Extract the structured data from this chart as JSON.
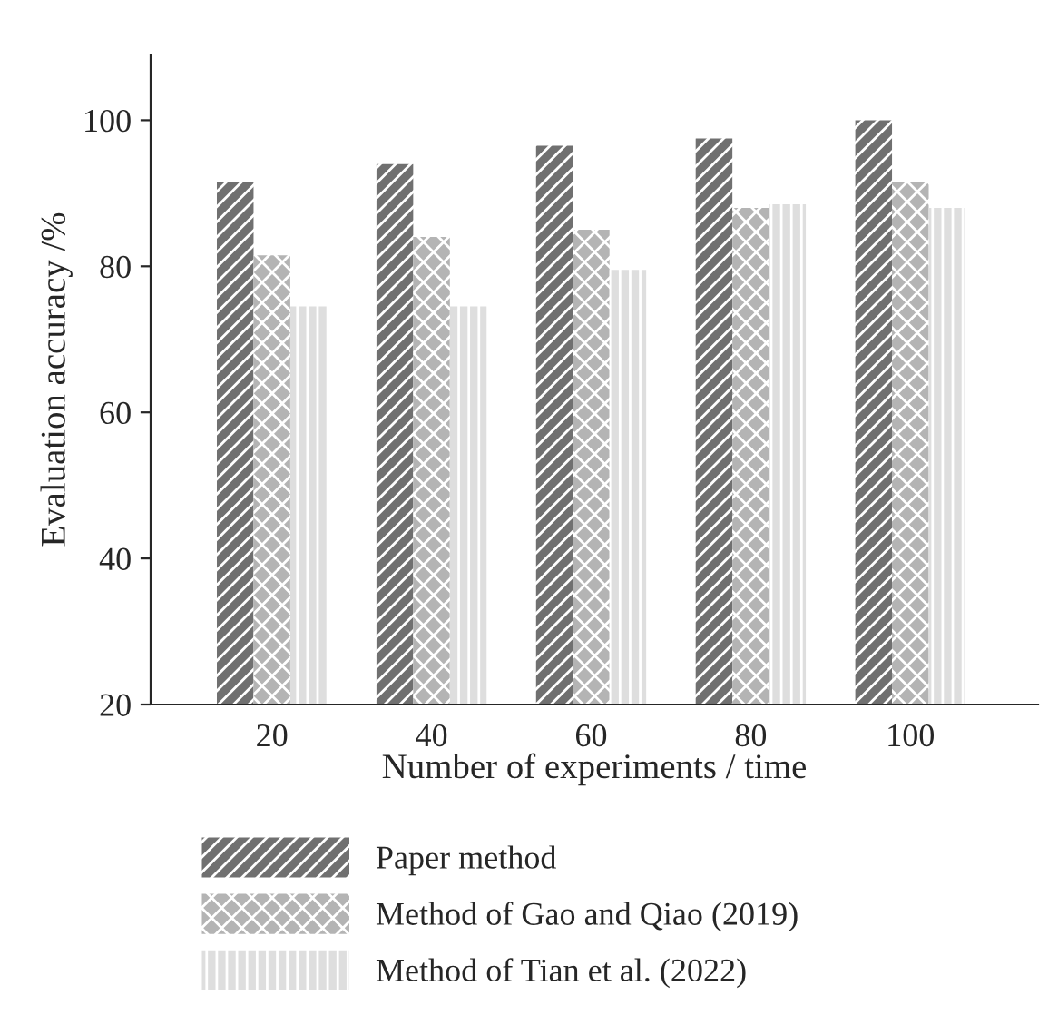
{
  "chart_data": {
    "type": "bar",
    "xlabel": "Number of experiments / time",
    "ylabel": "Evaluation accuracy /%",
    "categories": [
      "20",
      "40",
      "60",
      "80",
      "100"
    ],
    "series": [
      {
        "name": "Paper method",
        "color": "#707070",
        "values": [
          91.5,
          94,
          96.5,
          97.5,
          100
        ]
      },
      {
        "name": "Method of Gao and Qiao (2019)",
        "color": "#b4b4b4",
        "values": [
          81.5,
          84,
          85,
          88,
          91.5
        ]
      },
      {
        "name": "Method of Tian et al. (2022)",
        "color": "#dedede",
        "values": [
          74.5,
          74.5,
          79.5,
          88.5,
          88
        ]
      }
    ],
    "ylim": [
      20,
      109
    ],
    "yticks": [
      20,
      40,
      60,
      80,
      100
    ],
    "grid": false,
    "legend": "bottom"
  }
}
